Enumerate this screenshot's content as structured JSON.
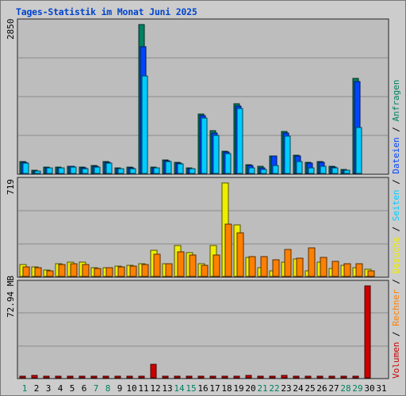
{
  "page": {
    "title": "Tages-Statistik im Monat Juni 2025"
  },
  "legend": {
    "items": [
      {
        "label": "Volumen",
        "color": "#cc0000"
      },
      {
        "label": "Rechner",
        "color": "#ff8000"
      },
      {
        "label": "Besuche",
        "color": "#eeee00"
      },
      {
        "label": "Seiten",
        "color": "#00ccff"
      },
      {
        "label": "Dateien",
        "color": "#0044ff"
      },
      {
        "label": "Anfragen",
        "color": "#008060"
      }
    ],
    "separator": "/"
  },
  "chart_data": [
    {
      "type": "bar",
      "panel": "top",
      "ymax_label": "2850",
      "ylim": [
        0,
        2850
      ],
      "categories": [
        "1",
        "2",
        "3",
        "4",
        "5",
        "6",
        "7",
        "8",
        "9",
        "10",
        "11",
        "12",
        "13",
        "14",
        "15",
        "16",
        "17",
        "18",
        "19",
        "20",
        "21",
        "22",
        "23",
        "24",
        "25",
        "26",
        "27",
        "28",
        "29",
        "30",
        "31"
      ],
      "series": [
        {
          "name": "Anfragen",
          "color": "#008060",
          "values": [
            230,
            55,
            120,
            125,
            140,
            115,
            145,
            230,
            100,
            115,
            2850,
            120,
            260,
            210,
            100,
            1140,
            820,
            430,
            1330,
            170,
            130,
            340,
            800,
            350,
            210,
            230,
            140,
            75,
            1820,
            0,
            0
          ]
        },
        {
          "name": "Dateien",
          "color": "#0044ff",
          "values": [
            210,
            45,
            105,
            110,
            130,
            100,
            130,
            210,
            90,
            100,
            2420,
            110,
            240,
            190,
            90,
            1100,
            770,
            410,
            1290,
            150,
            110,
            330,
            780,
            330,
            190,
            210,
            120,
            65,
            1760,
            0,
            0
          ]
        },
        {
          "name": "Seiten",
          "color": "#00ccff",
          "values": [
            200,
            40,
            100,
            105,
            120,
            95,
            125,
            200,
            85,
            95,
            1860,
            100,
            230,
            180,
            85,
            1060,
            730,
            380,
            1250,
            110,
            80,
            150,
            720,
            230,
            110,
            140,
            100,
            60,
            880,
            0,
            0
          ]
        }
      ]
    },
    {
      "type": "bar",
      "panel": "middle",
      "ymax_label": "719",
      "ylim": [
        0,
        719
      ],
      "categories": [
        "1",
        "2",
        "3",
        "4",
        "5",
        "6",
        "7",
        "8",
        "9",
        "10",
        "11",
        "12",
        "13",
        "14",
        "15",
        "16",
        "17",
        "18",
        "19",
        "20",
        "21",
        "22",
        "23",
        "24",
        "25",
        "26",
        "27",
        "28",
        "29",
        "30",
        "31"
      ],
      "series": [
        {
          "name": "Besuche",
          "color": "#eeee00",
          "values": [
            90,
            75,
            50,
            100,
            110,
            110,
            65,
            70,
            80,
            85,
            95,
            200,
            100,
            240,
            185,
            95,
            240,
            719,
            395,
            145,
            65,
            45,
            110,
            135,
            45,
            110,
            60,
            85,
            65,
            55,
            0
          ]
        },
        {
          "name": "Rechner",
          "color": "#ff8000",
          "values": [
            75,
            65,
            45,
            90,
            100,
            90,
            60,
            65,
            75,
            80,
            90,
            170,
            95,
            190,
            165,
            85,
            165,
            405,
            335,
            150,
            150,
            125,
            210,
            140,
            220,
            145,
            115,
            95,
            100,
            45,
            0
          ]
        }
      ]
    },
    {
      "type": "bar",
      "panel": "bottom",
      "ymax_label": "72.94 MB",
      "ylim": [
        0,
        72.94
      ],
      "categories": [
        "1",
        "2",
        "3",
        "4",
        "5",
        "6",
        "7",
        "8",
        "9",
        "10",
        "11",
        "12",
        "13",
        "14",
        "15",
        "16",
        "17",
        "18",
        "19",
        "20",
        "21",
        "22",
        "23",
        "24",
        "25",
        "26",
        "27",
        "28",
        "29",
        "30",
        "31"
      ],
      "series": [
        {
          "name": "Volumen",
          "color": "#cc0000",
          "values": [
            0.8,
            1.7,
            0.4,
            0.5,
            0.6,
            0.4,
            0.5,
            0.5,
            0.4,
            0.4,
            0.5,
            11.0,
            0.5,
            0.7,
            0.7,
            0.5,
            1.2,
            1.3,
            0.9,
            1.7,
            1.3,
            1.1,
            2.2,
            1.3,
            1.4,
            1.0,
            0.9,
            0.9,
            0.8,
            72.94,
            0
          ]
        }
      ]
    }
  ],
  "x_axis": {
    "labels": [
      "1",
      "2",
      "3",
      "4",
      "5",
      "6",
      "7",
      "8",
      "9",
      "10",
      "11",
      "12",
      "13",
      "14",
      "15",
      "16",
      "17",
      "18",
      "19",
      "20",
      "21",
      "22",
      "23",
      "24",
      "25",
      "26",
      "27",
      "28",
      "29",
      "30",
      "31"
    ],
    "weekend": [
      1,
      7,
      8,
      14,
      15,
      21,
      22,
      28,
      29
    ]
  }
}
